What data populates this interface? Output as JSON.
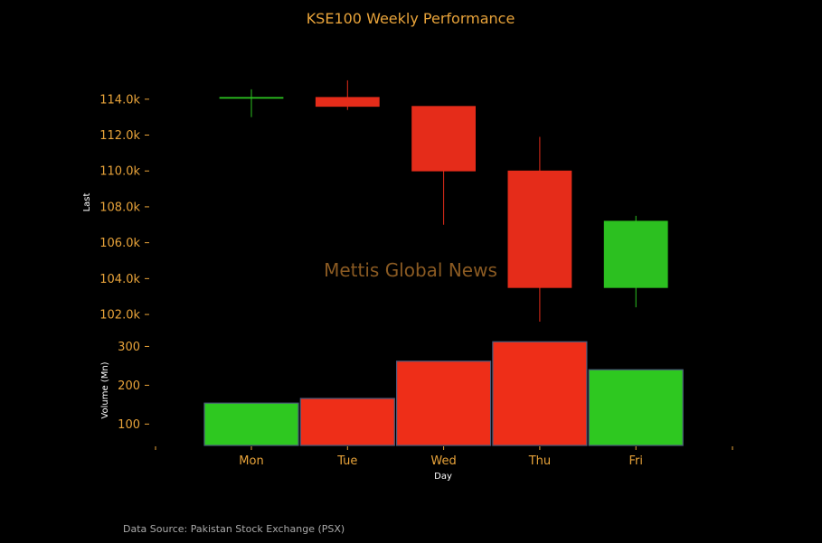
{
  "chart_data": {
    "type": "candlestick",
    "title": "KSE100 Weekly Performance",
    "watermark": "Mettis Global News",
    "source": "Data Source: Pakistan Stock Exchange (PSX)",
    "xlabel": "Day",
    "categories": [
      "Mon",
      "Tue",
      "Wed",
      "Thu",
      "Fri"
    ],
    "price": {
      "ylabel": "Last",
      "ylim": [
        101500,
        115500
      ],
      "ticks": [
        102000,
        104000,
        106000,
        108000,
        110000,
        112000,
        114000
      ],
      "tick_labels": [
        "102.0k",
        "104.0k",
        "106.0k",
        "108.0k",
        "110.0k",
        "112.0k",
        "114.0k"
      ],
      "open": [
        114050,
        114100,
        113600,
        110000,
        103500
      ],
      "high": [
        114550,
        115050,
        113600,
        111900,
        107500
      ],
      "low": [
        113000,
        113400,
        107000,
        101600,
        102400
      ],
      "close": [
        114100,
        113600,
        110000,
        103500,
        107200
      ]
    },
    "volume": {
      "ylabel": "Volume (Mn)",
      "ylim": [
        45,
        315
      ],
      "ticks": [
        100,
        200,
        300
      ],
      "tick_labels": [
        "100",
        "200",
        "300"
      ],
      "values": [
        154,
        166,
        262,
        312,
        240
      ]
    },
    "colors": {
      "up": "#2cc020",
      "down": "#e52c1a",
      "down_volume": "#ee2e18",
      "up_volume": "#2ec820",
      "edge": "#4a5a7a",
      "axis": "#e8a33a"
    }
  }
}
